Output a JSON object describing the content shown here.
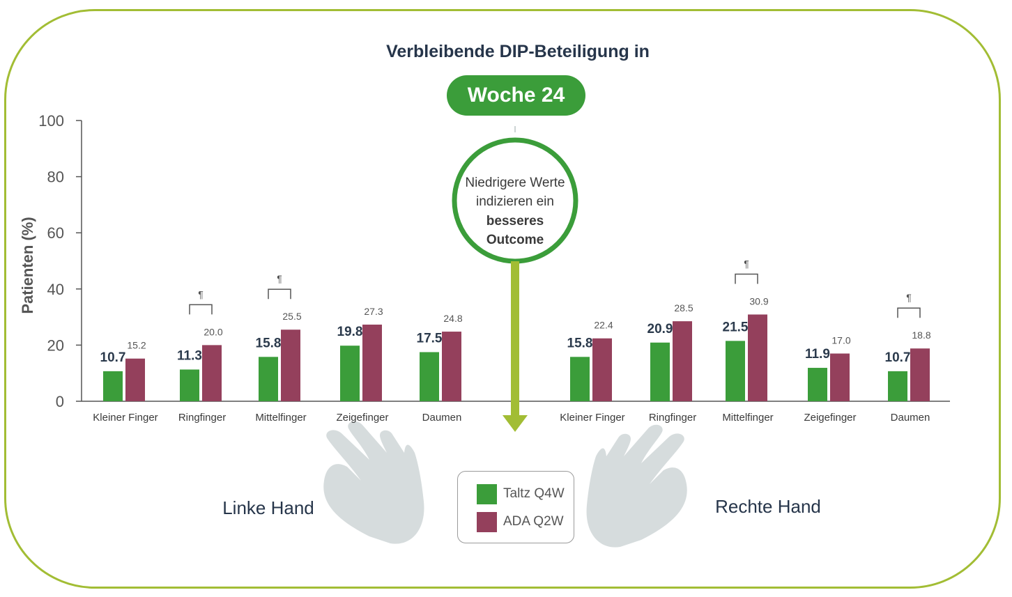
{
  "title": "Verbleibende DIP-Beteiligung in",
  "week_label": "Woche 24",
  "callout": {
    "line1": "Niedrigere Werte",
    "line2": "indizieren ein",
    "line3": "besseres",
    "line4": "Outcome"
  },
  "colors": {
    "taltz": "#3b9d3a",
    "ada": "#94405c",
    "frame": "#a2bd34",
    "hand": "#d6dcdd"
  },
  "hands": {
    "left": "Linke Hand",
    "right": "Rechte Hand"
  },
  "legend": [
    {
      "label": "Taltz Q4W",
      "color": "#3b9d3a"
    },
    {
      "label": "ADA Q2W",
      "color": "#94405c"
    }
  ],
  "chart_data": {
    "type": "bar",
    "ylabel": "Patienten (%)",
    "ylim": [
      0,
      100
    ],
    "yticks": [
      "0",
      "20",
      "40",
      "60",
      "80",
      "100"
    ],
    "categories": [
      "Kleiner Finger",
      "Ringfinger",
      "Mittelfinger",
      "Zeigefinger",
      "Daumen",
      "Kleiner Finger",
      "Ringfinger",
      "Mittelfinger",
      "Zeigefinger",
      "Daumen"
    ],
    "groups": [
      "Linke Hand",
      "Rechte Hand"
    ],
    "series": [
      {
        "name": "Taltz Q4W",
        "values": [
          10.7,
          11.3,
          15.8,
          19.8,
          17.5,
          15.8,
          20.9,
          21.5,
          11.9,
          10.7
        ],
        "labels": [
          "10.7",
          "11.3",
          "15.8",
          "19.8",
          "17.5",
          "15.8",
          "20.9",
          "21.5",
          "11.9",
          "10.7"
        ]
      },
      {
        "name": "ADA Q2W",
        "values": [
          15.2,
          20.0,
          25.5,
          27.3,
          24.8,
          22.4,
          28.5,
          30.9,
          17.0,
          18.8
        ],
        "labels": [
          "15.2",
          "20.0",
          "25.5",
          "27.3",
          "24.8",
          "22.4",
          "28.5",
          "30.9",
          "17.0",
          "18.8"
        ]
      }
    ],
    "significance_mark": "¶",
    "significance_categories": [
      1,
      2,
      7,
      9
    ]
  }
}
